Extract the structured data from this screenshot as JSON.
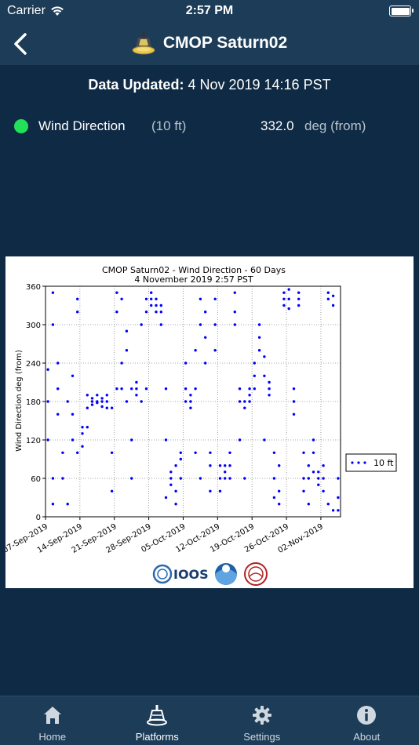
{
  "status_bar": {
    "carrier": "Carrier",
    "time": "2:57 PM",
    "battery_level": 1.0
  },
  "nav": {
    "title": "CMOP Saturn02",
    "back_icon": "chevron-left-icon",
    "platform_icon": "buoy-icon"
  },
  "updated": {
    "label": "Data Updated:",
    "value": "4 Nov 2019 14:16 PST"
  },
  "reading": {
    "status_color": "#22e05a",
    "label": "Wind Direction",
    "depth": "(10 ft)",
    "value": "332.0",
    "unit": "deg (from)"
  },
  "chart_data": {
    "type": "scatter",
    "title": "CMOP Saturn02 - Wind Direction - 60 Days",
    "subtitle": "4 November 2019 2:57 PST",
    "ylabel": "Wind Direction deg (from)",
    "xlabel": "",
    "xlim": [
      "2019-09-07",
      "2019-11-06"
    ],
    "ylim": [
      0,
      360
    ],
    "yticks": [
      0,
      60,
      120,
      180,
      240,
      300,
      360
    ],
    "xticks": [
      "07-Sep-2019",
      "14-Sep-2019",
      "21-Sep-2019",
      "28-Sep-2019",
      "05-Oct-2019",
      "12-Oct-2019",
      "19-Oct-2019",
      "26-Oct-2019",
      "02-Nov-2019"
    ],
    "grid": true,
    "legend": "right",
    "marker_color": "#0000ff",
    "series": [
      {
        "name": "10 ft",
        "points": [
          [
            "2019-09-07",
            230
          ],
          [
            "2019-09-07",
            180
          ],
          [
            "2019-09-07",
            120
          ],
          [
            "2019-09-08",
            60
          ],
          [
            "2019-09-08",
            20
          ],
          [
            "2019-09-08",
            300
          ],
          [
            "2019-09-08",
            350
          ],
          [
            "2019-09-09",
            240
          ],
          [
            "2019-09-09",
            200
          ],
          [
            "2019-09-09",
            160
          ],
          [
            "2019-09-10",
            100
          ],
          [
            "2019-09-10",
            60
          ],
          [
            "2019-09-11",
            20
          ],
          [
            "2019-09-11",
            180
          ],
          [
            "2019-09-12",
            220
          ],
          [
            "2019-09-12",
            160
          ],
          [
            "2019-09-12",
            120
          ],
          [
            "2019-09-13",
            340
          ],
          [
            "2019-09-13",
            320
          ],
          [
            "2019-09-13",
            100
          ],
          [
            "2019-09-14",
            140
          ],
          [
            "2019-09-14",
            130
          ],
          [
            "2019-09-14",
            110
          ],
          [
            "2019-09-15",
            140
          ],
          [
            "2019-09-15",
            170
          ],
          [
            "2019-09-15",
            190
          ],
          [
            "2019-09-16",
            180
          ],
          [
            "2019-09-16",
            175
          ],
          [
            "2019-09-16",
            185
          ],
          [
            "2019-09-17",
            180
          ],
          [
            "2019-09-17",
            178
          ],
          [
            "2019-09-17",
            190
          ],
          [
            "2019-09-18",
            180
          ],
          [
            "2019-09-18",
            172
          ],
          [
            "2019-09-18",
            185
          ],
          [
            "2019-09-19",
            180
          ],
          [
            "2019-09-19",
            170
          ],
          [
            "2019-09-19",
            190
          ],
          [
            "2019-09-20",
            170
          ],
          [
            "2019-09-20",
            100
          ],
          [
            "2019-09-20",
            40
          ],
          [
            "2019-09-21",
            200
          ],
          [
            "2019-09-21",
            320
          ],
          [
            "2019-09-21",
            350
          ],
          [
            "2019-09-22",
            340
          ],
          [
            "2019-09-22",
            240
          ],
          [
            "2019-09-22",
            200
          ],
          [
            "2019-09-23",
            180
          ],
          [
            "2019-09-23",
            260
          ],
          [
            "2019-09-23",
            290
          ],
          [
            "2019-09-24",
            200
          ],
          [
            "2019-09-24",
            120
          ],
          [
            "2019-09-24",
            60
          ],
          [
            "2019-09-25",
            190
          ],
          [
            "2019-09-25",
            200
          ],
          [
            "2019-09-25",
            210
          ],
          [
            "2019-09-26",
            180
          ],
          [
            "2019-09-26",
            300
          ],
          [
            "2019-09-27",
            200
          ],
          [
            "2019-09-27",
            340
          ],
          [
            "2019-09-27",
            320
          ],
          [
            "2019-09-28",
            330
          ],
          [
            "2019-09-28",
            340
          ],
          [
            "2019-09-28",
            350
          ],
          [
            "2019-09-29",
            320
          ],
          [
            "2019-09-29",
            330
          ],
          [
            "2019-09-29",
            340
          ],
          [
            "2019-09-30",
            320
          ],
          [
            "2019-09-30",
            300
          ],
          [
            "2019-09-30",
            330
          ],
          [
            "2019-10-01",
            200
          ],
          [
            "2019-10-01",
            120
          ],
          [
            "2019-10-01",
            30
          ],
          [
            "2019-10-02",
            60
          ],
          [
            "2019-10-02",
            70
          ],
          [
            "2019-10-02",
            50
          ],
          [
            "2019-10-03",
            40
          ],
          [
            "2019-10-03",
            80
          ],
          [
            "2019-10-03",
            20
          ],
          [
            "2019-10-04",
            100
          ],
          [
            "2019-10-04",
            90
          ],
          [
            "2019-10-04",
            60
          ],
          [
            "2019-10-05",
            200
          ],
          [
            "2019-10-05",
            240
          ],
          [
            "2019-10-05",
            180
          ],
          [
            "2019-10-06",
            190
          ],
          [
            "2019-10-06",
            180
          ],
          [
            "2019-10-06",
            170
          ],
          [
            "2019-10-07",
            200
          ],
          [
            "2019-10-07",
            260
          ],
          [
            "2019-10-07",
            100
          ],
          [
            "2019-10-08",
            60
          ],
          [
            "2019-10-08",
            300
          ],
          [
            "2019-10-08",
            340
          ],
          [
            "2019-10-09",
            320
          ],
          [
            "2019-10-09",
            280
          ],
          [
            "2019-10-09",
            240
          ],
          [
            "2019-10-10",
            80
          ],
          [
            "2019-10-10",
            100
          ],
          [
            "2019-10-10",
            40
          ],
          [
            "2019-10-11",
            340
          ],
          [
            "2019-10-11",
            300
          ],
          [
            "2019-10-11",
            260
          ],
          [
            "2019-10-12",
            80
          ],
          [
            "2019-10-12",
            60
          ],
          [
            "2019-10-12",
            40
          ],
          [
            "2019-10-13",
            70
          ],
          [
            "2019-10-13",
            80
          ],
          [
            "2019-10-13",
            60
          ],
          [
            "2019-10-14",
            100
          ],
          [
            "2019-10-14",
            80
          ],
          [
            "2019-10-14",
            60
          ],
          [
            "2019-10-15",
            320
          ],
          [
            "2019-10-15",
            350
          ],
          [
            "2019-10-15",
            300
          ],
          [
            "2019-10-16",
            200
          ],
          [
            "2019-10-16",
            180
          ],
          [
            "2019-10-16",
            120
          ],
          [
            "2019-10-17",
            180
          ],
          [
            "2019-10-17",
            170
          ],
          [
            "2019-10-17",
            60
          ],
          [
            "2019-10-18",
            180
          ],
          [
            "2019-10-18",
            190
          ],
          [
            "2019-10-18",
            200
          ],
          [
            "2019-10-19",
            220
          ],
          [
            "2019-10-19",
            200
          ],
          [
            "2019-10-19",
            240
          ],
          [
            "2019-10-20",
            280
          ],
          [
            "2019-10-20",
            300
          ],
          [
            "2019-10-20",
            260
          ],
          [
            "2019-10-21",
            250
          ],
          [
            "2019-10-21",
            220
          ],
          [
            "2019-10-21",
            120
          ],
          [
            "2019-10-22",
            200
          ],
          [
            "2019-10-22",
            190
          ],
          [
            "2019-10-22",
            210
          ],
          [
            "2019-10-23",
            100
          ],
          [
            "2019-10-23",
            60
          ],
          [
            "2019-10-23",
            30
          ],
          [
            "2019-10-24",
            40
          ],
          [
            "2019-10-24",
            20
          ],
          [
            "2019-10-24",
            80
          ],
          [
            "2019-10-25",
            340
          ],
          [
            "2019-10-25",
            350
          ],
          [
            "2019-10-25",
            330
          ],
          [
            "2019-10-26",
            340
          ],
          [
            "2019-10-26",
            355
          ],
          [
            "2019-10-26",
            325
          ],
          [
            "2019-10-27",
            200
          ],
          [
            "2019-10-27",
            180
          ],
          [
            "2019-10-27",
            160
          ],
          [
            "2019-10-28",
            340
          ],
          [
            "2019-10-28",
            350
          ],
          [
            "2019-10-28",
            330
          ],
          [
            "2019-10-29",
            60
          ],
          [
            "2019-10-29",
            100
          ],
          [
            "2019-10-29",
            40
          ],
          [
            "2019-10-30",
            80
          ],
          [
            "2019-10-30",
            60
          ],
          [
            "2019-10-30",
            20
          ],
          [
            "2019-10-31",
            100
          ],
          [
            "2019-10-31",
            120
          ],
          [
            "2019-10-31",
            70
          ],
          [
            "2019-11-01",
            60
          ],
          [
            "2019-11-01",
            50
          ],
          [
            "2019-11-01",
            70
          ],
          [
            "2019-11-02",
            60
          ],
          [
            "2019-11-02",
            40
          ],
          [
            "2019-11-02",
            80
          ],
          [
            "2019-11-03",
            340
          ],
          [
            "2019-11-03",
            350
          ],
          [
            "2019-11-03",
            20
          ],
          [
            "2019-11-04",
            330
          ],
          [
            "2019-11-04",
            345
          ],
          [
            "2019-11-04",
            10
          ],
          [
            "2019-11-05",
            60
          ],
          [
            "2019-11-05",
            30
          ],
          [
            "2019-11-05",
            10
          ]
        ]
      }
    ]
  },
  "logos": {
    "ioos_text": "IOOS"
  },
  "tabs": [
    {
      "label": "Home",
      "icon": "home-icon",
      "active": false
    },
    {
      "label": "Platforms",
      "icon": "buoy-icon",
      "active": true
    },
    {
      "label": "Settings",
      "icon": "gear-icon",
      "active": false
    },
    {
      "label": "About",
      "icon": "info-icon",
      "active": false
    }
  ]
}
